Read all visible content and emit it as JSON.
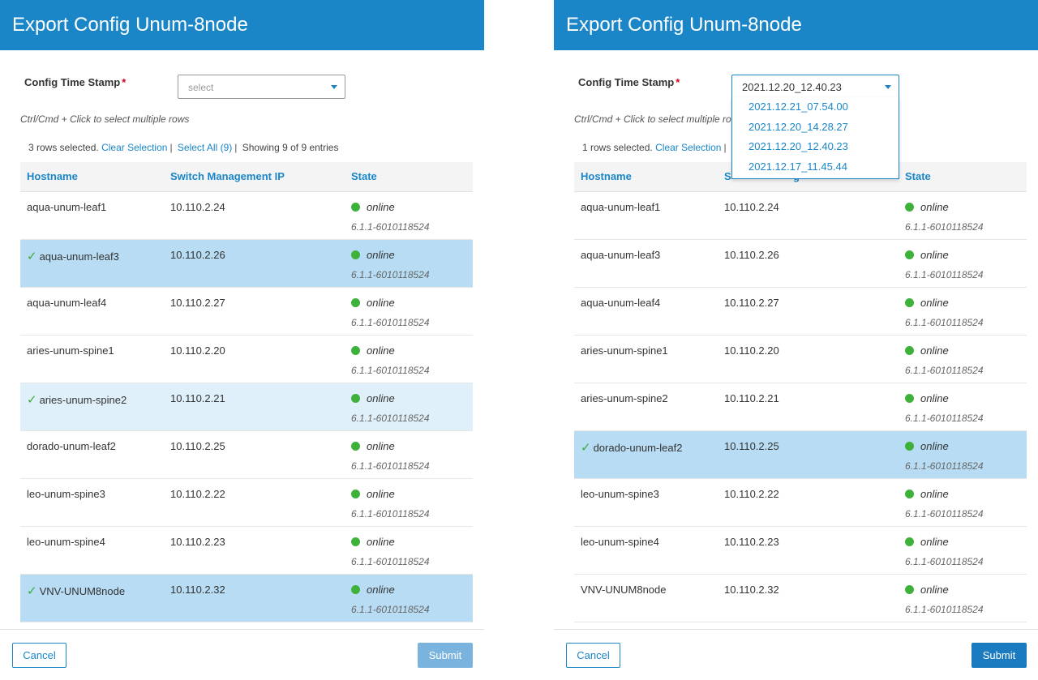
{
  "colors": {
    "header": "#1a86c8",
    "accent": "#1a86c8",
    "online": "#3eb13b",
    "selected_row": "#b7dcf3",
    "required": "#d0021b"
  },
  "left": {
    "title": "Export Config Unum-8node",
    "field_label": "Config Time Stamp",
    "required_mark": "*",
    "select_placeholder": "select",
    "hint": "Ctrl/Cmd + Click to select multiple rows",
    "rows_selected": "3 rows selected.",
    "clear_selection": "Clear Selection",
    "select_all": "Select All (9)",
    "showing": "Showing 9 of 9 entries",
    "columns": {
      "hostname": "Hostname",
      "ip": "Switch Management IP",
      "state": "State"
    },
    "rows": [
      {
        "host": "aqua-unum-leaf1",
        "ip": "10.110.2.24",
        "state": "online",
        "ver": "6.1.1-6010118524"
      },
      {
        "host": "aqua-unum-leaf3",
        "ip": "10.110.2.26",
        "state": "online",
        "ver": "6.1.1-6010118524",
        "check": "✓"
      },
      {
        "host": "aqua-unum-leaf4",
        "ip": "10.110.2.27",
        "state": "online",
        "ver": "6.1.1-6010118524"
      },
      {
        "host": "aries-unum-spine1",
        "ip": "10.110.2.20",
        "state": "online",
        "ver": "6.1.1-6010118524"
      },
      {
        "host": "aries-unum-spine2",
        "ip": "10.110.2.21",
        "state": "online",
        "ver": "6.1.1-6010118524",
        "check": "✓"
      },
      {
        "host": "dorado-unum-leaf2",
        "ip": "10.110.2.25",
        "state": "online",
        "ver": "6.1.1-6010118524"
      },
      {
        "host": "leo-unum-spine3",
        "ip": "10.110.2.22",
        "state": "online",
        "ver": "6.1.1-6010118524"
      },
      {
        "host": "leo-unum-spine4",
        "ip": "10.110.2.23",
        "state": "online",
        "ver": "6.1.1-6010118524"
      },
      {
        "host": "VNV-UNUM8node",
        "ip": "10.110.2.32",
        "state": "online",
        "ver": "6.1.1-6010118524",
        "check": "✓"
      }
    ],
    "cancel": "Cancel",
    "submit": "Submit"
  },
  "right": {
    "title": "Export Config Unum-8node",
    "field_label": "Config Time Stamp",
    "required_mark": "*",
    "select_value": "2021.12.20_12.40.23",
    "options": [
      "2021.12.21_07.54.00",
      "2021.12.20_14.28.27",
      "2021.12.20_12.40.23",
      "2021.12.17_11.45.44"
    ],
    "hint": "Ctrl/Cmd + Click to select multiple ro",
    "rows_selected": "1 rows selected.",
    "clear_selection": "Clear Selection",
    "showing_tail": "ies",
    "columns": {
      "hostname": "Hostname",
      "ip_partial": "S",
      "ip_tail": "g",
      "state": "State"
    },
    "rows": [
      {
        "host": "aqua-unum-leaf1",
        "ip": "10.110.2.24",
        "state": "online",
        "ver": "6.1.1-6010118524"
      },
      {
        "host": "aqua-unum-leaf3",
        "ip": "10.110.2.26",
        "state": "online",
        "ver": "6.1.1-6010118524"
      },
      {
        "host": "aqua-unum-leaf4",
        "ip": "10.110.2.27",
        "state": "online",
        "ver": "6.1.1-6010118524"
      },
      {
        "host": "aries-unum-spine1",
        "ip": "10.110.2.20",
        "state": "online",
        "ver": "6.1.1-6010118524"
      },
      {
        "host": "aries-unum-spine2",
        "ip": "10.110.2.21",
        "state": "online",
        "ver": "6.1.1-6010118524"
      },
      {
        "host": "dorado-unum-leaf2",
        "ip": "10.110.2.25",
        "state": "online",
        "ver": "6.1.1-6010118524",
        "check": "✓"
      },
      {
        "host": "leo-unum-spine3",
        "ip": "10.110.2.22",
        "state": "online",
        "ver": "6.1.1-6010118524"
      },
      {
        "host": "leo-unum-spine4",
        "ip": "10.110.2.23",
        "state": "online",
        "ver": "6.1.1-6010118524"
      },
      {
        "host": "VNV-UNUM8node",
        "ip": "10.110.2.32",
        "state": "online",
        "ver": "6.1.1-6010118524"
      }
    ],
    "cancel": "Cancel",
    "submit": "Submit"
  }
}
